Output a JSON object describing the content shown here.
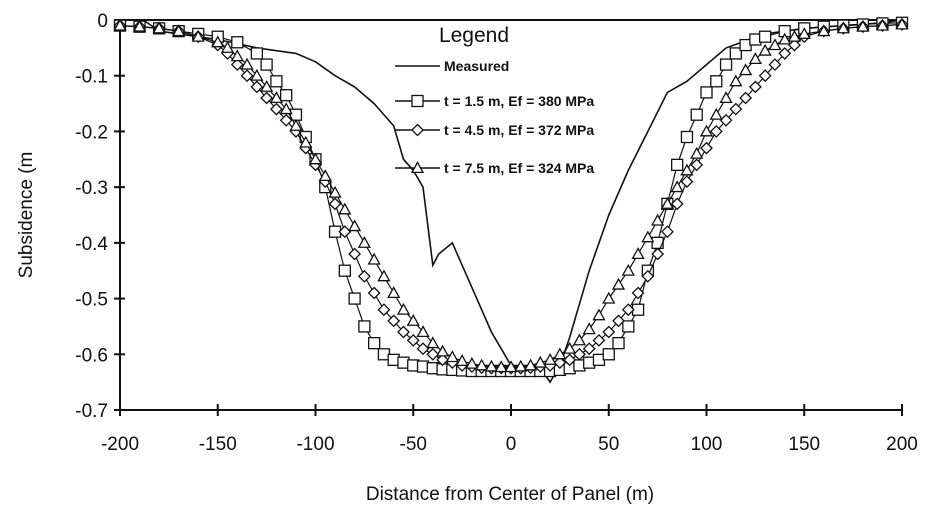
{
  "chart_data": {
    "type": "line",
    "title": "",
    "xlabel": "Distance from Center of Panel (m)",
    "ylabel": "Subsidence (m",
    "xlim": [
      -200,
      200
    ],
    "ylim": [
      -0.7,
      0
    ],
    "x_ticks": [
      -200,
      -150,
      -100,
      -50,
      0,
      50,
      100,
      150,
      200
    ],
    "x_tick_labels": [
      "-200",
      "-150",
      "-100",
      "-50",
      "0",
      "50",
      "100",
      "150",
      "200"
    ],
    "y_ticks": [
      0,
      -0.1,
      -0.2,
      -0.3,
      -0.4,
      -0.5,
      -0.6,
      -0.7
    ],
    "y_tick_labels": [
      "0",
      "-0.1",
      "-0.2",
      "-0.3",
      "-0.4",
      "-0.5",
      "-0.6",
      "-0.7"
    ],
    "grid": false,
    "legend": {
      "title": "Legend",
      "placement": "top-center"
    },
    "series": [
      {
        "name": "Measured",
        "marker": "none",
        "x": [
          -200,
          -188,
          -180,
          -170,
          -150,
          -130,
          -110,
          -100,
          -90,
          -80,
          -70,
          -60,
          -55,
          -50,
          -45,
          -40,
          -37,
          -30,
          -20,
          -10,
          0,
          10,
          15,
          20,
          25,
          30,
          40,
          50,
          60,
          70,
          80,
          90,
          100,
          110,
          130,
          150,
          170,
          190,
          200
        ],
        "values": [
          0.0,
          0.0,
          -0.02,
          -0.025,
          -0.035,
          -0.05,
          -0.06,
          -0.075,
          -0.1,
          -0.12,
          -0.15,
          -0.19,
          -0.25,
          -0.27,
          -0.3,
          -0.44,
          -0.42,
          -0.4,
          -0.48,
          -0.56,
          -0.62,
          -0.625,
          -0.625,
          -0.65,
          -0.62,
          -0.57,
          -0.45,
          -0.35,
          -0.27,
          -0.2,
          -0.13,
          -0.11,
          -0.08,
          -0.05,
          -0.025,
          -0.015,
          -0.01,
          -0.005,
          0.0
        ]
      },
      {
        "name": "t = 1.5 m, Ef = 380 MPa",
        "marker": "square",
        "x": [
          -200,
          -190,
          -180,
          -170,
          -160,
          -150,
          -140,
          -130,
          -125,
          -120,
          -115,
          -110,
          -105,
          -100,
          -95,
          -90,
          -85,
          -80,
          -75,
          -70,
          -65,
          -60,
          -55,
          -50,
          -45,
          -40,
          -35,
          -30,
          -25,
          -20,
          -15,
          -10,
          -5,
          0,
          5,
          10,
          15,
          20,
          25,
          30,
          35,
          40,
          45,
          50,
          55,
          60,
          65,
          70,
          75,
          80,
          85,
          90,
          95,
          100,
          105,
          110,
          115,
          120,
          125,
          130,
          140,
          150,
          160,
          170,
          180,
          190,
          200
        ],
        "values": [
          -0.01,
          -0.012,
          -0.015,
          -0.02,
          -0.025,
          -0.03,
          -0.04,
          -0.06,
          -0.08,
          -0.11,
          -0.135,
          -0.17,
          -0.21,
          -0.25,
          -0.3,
          -0.38,
          -0.45,
          -0.5,
          -0.55,
          -0.58,
          -0.6,
          -0.61,
          -0.615,
          -0.62,
          -0.622,
          -0.625,
          -0.627,
          -0.628,
          -0.629,
          -0.63,
          -0.63,
          -0.63,
          -0.63,
          -0.63,
          -0.63,
          -0.63,
          -0.63,
          -0.63,
          -0.628,
          -0.625,
          -0.62,
          -0.615,
          -0.61,
          -0.6,
          -0.58,
          -0.55,
          -0.52,
          -0.45,
          -0.4,
          -0.33,
          -0.26,
          -0.21,
          -0.17,
          -0.13,
          -0.11,
          -0.08,
          -0.06,
          -0.045,
          -0.035,
          -0.03,
          -0.02,
          -0.015,
          -0.012,
          -0.01,
          -0.008,
          -0.006,
          -0.005
        ]
      },
      {
        "name": "t = 4.5 m, Ef = 372 MPa",
        "marker": "diamond",
        "x": [
          -200,
          -190,
          -180,
          -170,
          -160,
          -150,
          -145,
          -140,
          -135,
          -130,
          -125,
          -120,
          -115,
          -110,
          -105,
          -100,
          -95,
          -90,
          -85,
          -80,
          -75,
          -70,
          -65,
          -60,
          -55,
          -50,
          -45,
          -40,
          -35,
          -30,
          -25,
          -20,
          -15,
          -10,
          -5,
          0,
          5,
          10,
          15,
          20,
          25,
          30,
          35,
          40,
          45,
          50,
          55,
          60,
          65,
          70,
          75,
          80,
          85,
          90,
          95,
          100,
          105,
          110,
          115,
          120,
          125,
          130,
          135,
          140,
          145,
          150,
          160,
          170,
          180,
          190,
          200
        ],
        "values": [
          -0.01,
          -0.012,
          -0.015,
          -0.02,
          -0.03,
          -0.045,
          -0.06,
          -0.08,
          -0.1,
          -0.12,
          -0.14,
          -0.16,
          -0.18,
          -0.2,
          -0.23,
          -0.26,
          -0.29,
          -0.33,
          -0.38,
          -0.42,
          -0.46,
          -0.49,
          -0.52,
          -0.54,
          -0.56,
          -0.575,
          -0.59,
          -0.6,
          -0.61,
          -0.615,
          -0.62,
          -0.622,
          -0.624,
          -0.625,
          -0.625,
          -0.625,
          -0.625,
          -0.624,
          -0.622,
          -0.62,
          -0.615,
          -0.61,
          -0.6,
          -0.59,
          -0.575,
          -0.56,
          -0.54,
          -0.52,
          -0.49,
          -0.46,
          -0.42,
          -0.38,
          -0.33,
          -0.29,
          -0.26,
          -0.23,
          -0.2,
          -0.18,
          -0.16,
          -0.14,
          -0.12,
          -0.1,
          -0.08,
          -0.06,
          -0.045,
          -0.03,
          -0.02,
          -0.015,
          -0.012,
          -0.01,
          -0.008
        ]
      },
      {
        "name": "t = 7.5 m, Ef = 324 MPa",
        "marker": "triangle",
        "x": [
          -200,
          -190,
          -180,
          -170,
          -160,
          -150,
          -145,
          -140,
          -135,
          -130,
          -125,
          -120,
          -115,
          -110,
          -105,
          -100,
          -95,
          -90,
          -85,
          -80,
          -75,
          -70,
          -65,
          -60,
          -55,
          -50,
          -45,
          -40,
          -35,
          -30,
          -25,
          -20,
          -15,
          -10,
          -5,
          0,
          5,
          10,
          15,
          20,
          25,
          30,
          35,
          40,
          45,
          50,
          55,
          60,
          65,
          70,
          75,
          80,
          85,
          90,
          95,
          100,
          105,
          110,
          115,
          120,
          125,
          130,
          135,
          140,
          145,
          150,
          160,
          170,
          180,
          190,
          200
        ],
        "values": [
          -0.01,
          -0.012,
          -0.015,
          -0.02,
          -0.03,
          -0.04,
          -0.05,
          -0.065,
          -0.08,
          -0.1,
          -0.12,
          -0.14,
          -0.16,
          -0.19,
          -0.22,
          -0.25,
          -0.28,
          -0.31,
          -0.34,
          -0.37,
          -0.4,
          -0.43,
          -0.46,
          -0.49,
          -0.52,
          -0.54,
          -0.56,
          -0.58,
          -0.595,
          -0.605,
          -0.612,
          -0.617,
          -0.62,
          -0.622,
          -0.623,
          -0.623,
          -0.622,
          -0.62,
          -0.615,
          -0.61,
          -0.6,
          -0.59,
          -0.575,
          -0.555,
          -0.53,
          -0.5,
          -0.475,
          -0.45,
          -0.42,
          -0.39,
          -0.36,
          -0.33,
          -0.3,
          -0.27,
          -0.24,
          -0.2,
          -0.17,
          -0.14,
          -0.11,
          -0.09,
          -0.07,
          -0.055,
          -0.045,
          -0.035,
          -0.03,
          -0.025,
          -0.02,
          -0.015,
          -0.012,
          -0.01,
          -0.008
        ]
      }
    ]
  }
}
